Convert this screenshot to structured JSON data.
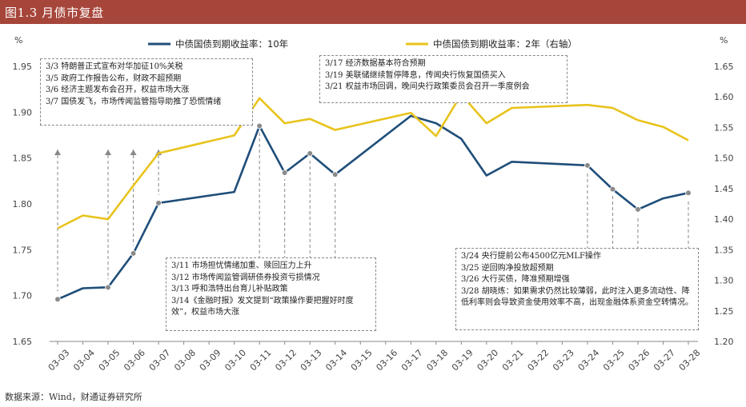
{
  "header": {
    "title": "图1.3 月债市复盘"
  },
  "footer": {
    "source": "数据来源：Wind，财通证券研究所"
  },
  "chart_data": {
    "type": "line",
    "x": [
      "03-03",
      "03-04",
      "03-05",
      "03-06",
      "03-07",
      "03-08",
      "03-09",
      "03-10",
      "03-11",
      "03-12",
      "03-13",
      "03-14",
      "03-15",
      "03-16",
      "03-17",
      "03-18",
      "03-19",
      "03-20",
      "03-21",
      "03-22",
      "03-23",
      "03-24",
      "03-25",
      "03-26",
      "03-27",
      "03-28"
    ],
    "y_left_unit": "%",
    "y_right_unit": "%",
    "ylim_left": [
      1.65,
      1.95
    ],
    "ylim_right": [
      1.2,
      1.65
    ],
    "yticks_left": [
      "1.65",
      "1.70",
      "1.75",
      "1.80",
      "1.85",
      "1.90",
      "1.95"
    ],
    "yticks_right": [
      "1.20",
      "1.25",
      "1.30",
      "1.35",
      "1.40",
      "1.45",
      "1.50",
      "1.55",
      "1.60",
      "1.65"
    ],
    "legend_position": "top",
    "series": [
      {
        "name": "中债国债到期收益率：10年",
        "axis": "left",
        "color": "#1f4e79",
        "values": [
          {
            "x": "03-03",
            "y": 1.696
          },
          {
            "x": "03-04",
            "y": 1.708
          },
          {
            "x": "03-05",
            "y": 1.709
          },
          {
            "x": "03-06",
            "y": 1.746
          },
          {
            "x": "03-07",
            "y": 1.801
          },
          {
            "x": "03-10",
            "y": 1.813
          },
          {
            "x": "03-11",
            "y": 1.885
          },
          {
            "x": "03-12",
            "y": 1.834
          },
          {
            "x": "03-13",
            "y": 1.855
          },
          {
            "x": "03-14",
            "y": 1.832
          },
          {
            "x": "03-17",
            "y": 1.896
          },
          {
            "x": "03-18",
            "y": 1.888
          },
          {
            "x": "03-19",
            "y": 1.871
          },
          {
            "x": "03-20",
            "y": 1.831
          },
          {
            "x": "03-21",
            "y": 1.846
          },
          {
            "x": "03-24",
            "y": 1.842
          },
          {
            "x": "03-25",
            "y": 1.816
          },
          {
            "x": "03-26",
            "y": 1.794
          },
          {
            "x": "03-27",
            "y": 1.806
          },
          {
            "x": "03-28",
            "y": 1.812
          }
        ]
      },
      {
        "name": "中债国债到期收益率：2年（右轴）",
        "axis": "right",
        "color": "#e8c31c",
        "values": [
          {
            "x": "03-03",
            "y": 1.385
          },
          {
            "x": "03-04",
            "y": 1.406
          },
          {
            "x": "03-05",
            "y": 1.4
          },
          {
            "x": "03-06",
            "y": 1.455
          },
          {
            "x": "03-07",
            "y": 1.508
          },
          {
            "x": "03-10",
            "y": 1.537
          },
          {
            "x": "03-11",
            "y": 1.598
          },
          {
            "x": "03-12",
            "y": 1.557
          },
          {
            "x": "03-13",
            "y": 1.564
          },
          {
            "x": "03-14",
            "y": 1.546
          },
          {
            "x": "03-17",
            "y": 1.574
          },
          {
            "x": "03-18",
            "y": 1.536
          },
          {
            "x": "03-19",
            "y": 1.604
          },
          {
            "x": "03-20",
            "y": 1.557
          },
          {
            "x": "03-21",
            "y": 1.582
          },
          {
            "x": "03-24",
            "y": 1.587
          },
          {
            "x": "03-25",
            "y": 1.582
          },
          {
            "x": "03-26",
            "y": 1.562
          },
          {
            "x": "03-27",
            "y": 1.551
          },
          {
            "x": "03-28",
            "y": 1.529
          }
        ]
      }
    ],
    "annotations": [
      {
        "lines": [
          "3/3 特朗普正式宣布对华加征10%关税",
          "3/5 政府工作报告公布，财政不超预期",
          "3/6 经济主题发布会召开，权益市场大涨",
          "3/7 国债发飞，市场传闻监管指导助推了恐慌情绪"
        ],
        "points": [
          {
            "series": 0,
            "x": "03-03"
          },
          {
            "series": 0,
            "x": "03-05"
          },
          {
            "series": 0,
            "x": "03-06"
          },
          {
            "series": 0,
            "x": "03-07"
          }
        ]
      },
      {
        "lines": [
          "3/17 经济数据基本符合预期",
          "3/19 美联储继续暂停降息，传闻央行恢复国债买入",
          "3/21 权益市场回调，晚间央行政策委员会召开一季度例会"
        ],
        "points": []
      },
      {
        "lines": [
          "3/11 市场担忧情绪加重、赎回压力上升",
          "3/12 市场传闻监管调研债券投资亏损情况",
          "3/13 呼和浩特出台育儿补贴政策",
          "3/14《金融时报》发文提到“政策操作要把握好时度效”，权益市场大涨"
        ],
        "points": [
          {
            "series": 0,
            "x": "03-11"
          },
          {
            "series": 0,
            "x": "03-12"
          },
          {
            "series": 0,
            "x": "03-13"
          },
          {
            "series": 0,
            "x": "03-14"
          }
        ]
      },
      {
        "lines": [
          "3/24 央行提前公布4500亿元MLF操作",
          "3/25 逆回购净投放超预期",
          "3/26 大行买债，降准预期增强",
          "3/28 胡晓炼：如果需求仍然比较薄弱，此时注入更多流动性、降低利率则会导致资金使用效率不高，出现金融体系资金空转情况。"
        ],
        "points": [
          {
            "series": 0,
            "x": "03-24"
          },
          {
            "series": 0,
            "x": "03-25"
          },
          {
            "series": 0,
            "x": "03-26"
          },
          {
            "series": 0,
            "x": "03-28"
          }
        ]
      }
    ]
  }
}
